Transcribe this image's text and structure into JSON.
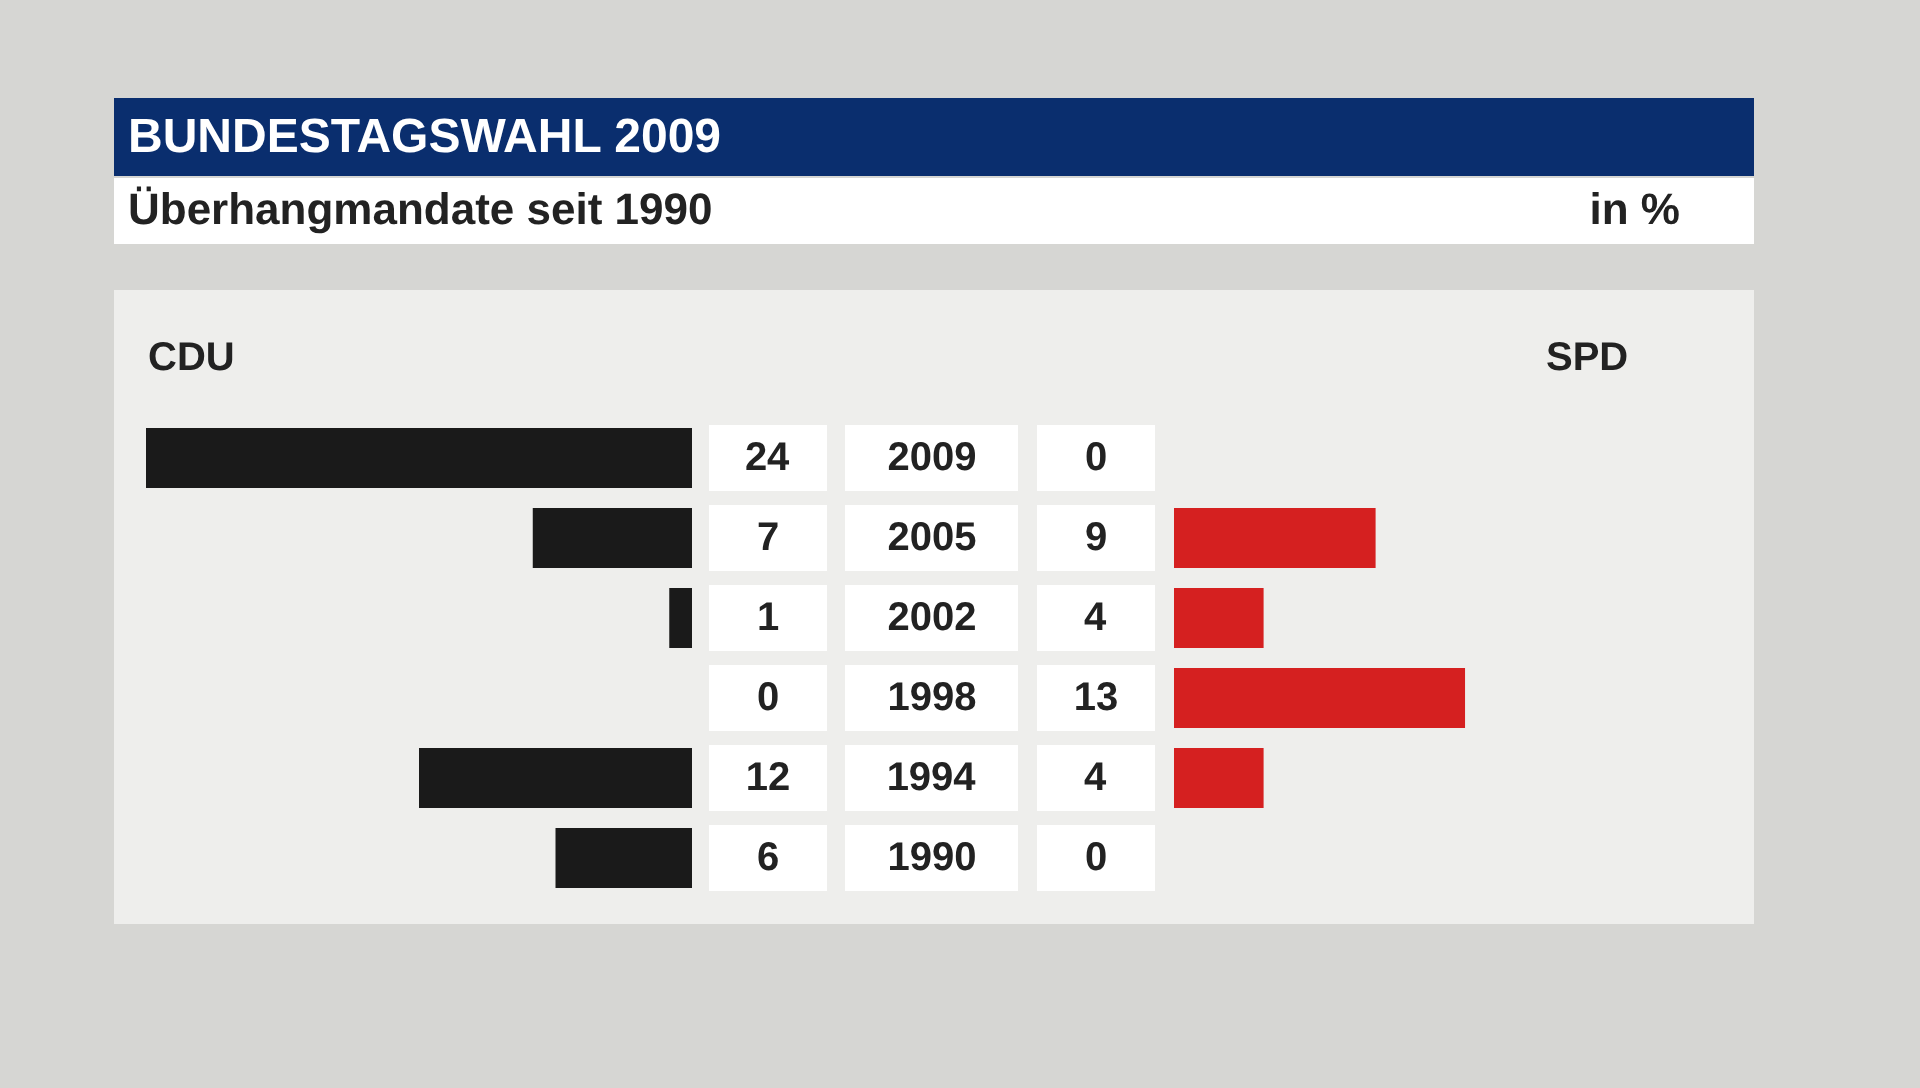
{
  "chart_data": [
    {
      "type": "bar",
      "orientation": "horizontal",
      "title": "BUNDESTAGSWAHL 2009",
      "subtitle": "Überhangmandate seit 1990",
      "annotations": [
        "in %"
      ],
      "categories": [
        "2009",
        "2005",
        "2002",
        "1998",
        "1994",
        "1990"
      ],
      "xlim": [
        24,
        0
      ],
      "series": [
        {
          "name": "CDU",
          "color": "#1a1a1a",
          "values": [
            24,
            7,
            1,
            0,
            12,
            6
          ]
        }
      ],
      "data_labels": true,
      "tick_labels": "y"
    },
    {
      "type": "bar",
      "orientation": "horizontal",
      "categories": [
        "2009",
        "2005",
        "2002",
        "1998",
        "1994",
        "1990"
      ],
      "series": [
        {
          "name": "SPD",
          "color": "#d52020",
          "values": [
            0,
            9,
            4,
            13,
            4,
            0
          ]
        }
      ],
      "data_labels": true,
      "tick_labels": false
    }
  ]
}
